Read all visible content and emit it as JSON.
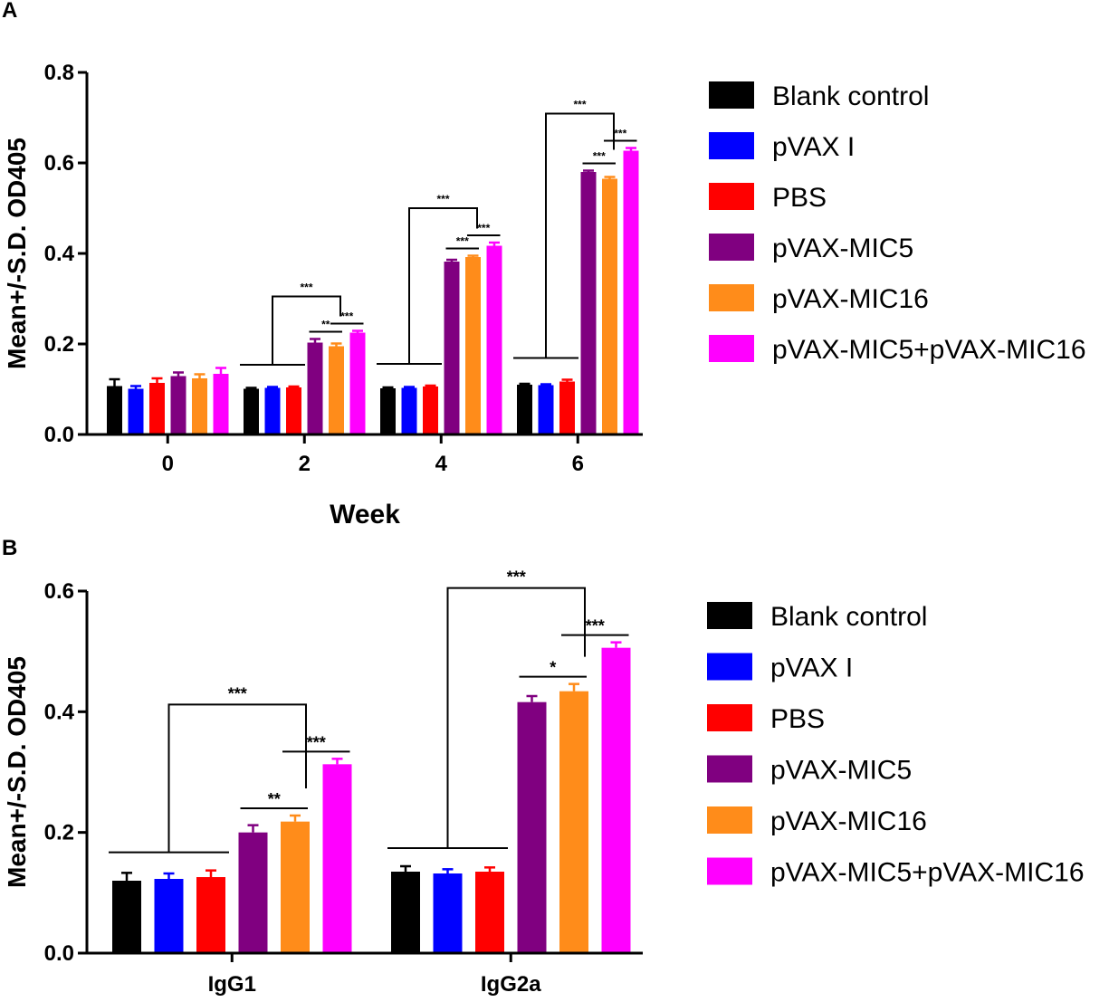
{
  "panels": [
    "A",
    "B"
  ],
  "chart_data": [
    {
      "type": "bar",
      "panel": "A",
      "xlabel": "Week",
      "ylabel": "Mean+/-S.D. OD405",
      "ylim": [
        0,
        0.8
      ],
      "yticks": [
        "0.0",
        "0.2",
        "0.4",
        "0.6",
        "0.8"
      ],
      "categories": [
        "0",
        "2",
        "4",
        "6"
      ],
      "series": [
        {
          "name": "Blank control",
          "color": "#000000",
          "values": [
            0.107,
            0.101,
            0.102,
            0.11
          ],
          "errors": [
            0.015,
            0.002,
            0.002,
            0.002
          ]
        },
        {
          "name": "pVAX I",
          "color": "#0000ff",
          "values": [
            0.101,
            0.103,
            0.103,
            0.109
          ],
          "errors": [
            0.006,
            0.002,
            0.002,
            0.002
          ]
        },
        {
          "name": "PBS",
          "color": "#ff0000",
          "values": [
            0.114,
            0.104,
            0.106,
            0.117
          ],
          "errors": [
            0.01,
            0.002,
            0.002,
            0.004
          ]
        },
        {
          "name": "pVAX-MIC5",
          "color": "#800080",
          "values": [
            0.129,
            0.203,
            0.382,
            0.58
          ],
          "errors": [
            0.008,
            0.008,
            0.004,
            0.003
          ]
        },
        {
          "name": "pVAX-MIC16",
          "color": "#ff8c1a",
          "values": [
            0.124,
            0.195,
            0.392,
            0.565
          ],
          "errors": [
            0.009,
            0.006,
            0.003,
            0.004
          ]
        },
        {
          "name": "pVAX-MIC5+pVAX-MIC16",
          "color": "#ff00ff",
          "values": [
            0.134,
            0.225,
            0.417,
            0.627
          ],
          "errors": [
            0.013,
            0.004,
            0.007,
            0.006
          ]
        }
      ],
      "significance": [
        {
          "category": "2",
          "type": "bracket",
          "label": "***"
        },
        {
          "category": "2",
          "type": "pair",
          "from": 3,
          "to": 4,
          "label": "**"
        },
        {
          "category": "2",
          "type": "pair",
          "from": 4,
          "to": 5,
          "label": "***"
        },
        {
          "category": "4",
          "type": "bracket",
          "label": "***"
        },
        {
          "category": "4",
          "type": "pair",
          "from": 3,
          "to": 4,
          "label": "***"
        },
        {
          "category": "4",
          "type": "pair",
          "from": 4,
          "to": 5,
          "label": "***"
        },
        {
          "category": "6",
          "type": "bracket",
          "label": "***"
        },
        {
          "category": "6",
          "type": "pair",
          "from": 3,
          "to": 4,
          "label": "***"
        },
        {
          "category": "6",
          "type": "pair",
          "from": 4,
          "to": 5,
          "label": "***"
        }
      ]
    },
    {
      "type": "bar",
      "panel": "B",
      "xlabel": "",
      "ylabel": "Mean+/-S.D. OD405",
      "ylim": [
        0,
        0.6
      ],
      "yticks": [
        "0.0",
        "0.2",
        "0.4",
        "0.6"
      ],
      "categories": [
        "IgG1",
        "IgG2a"
      ],
      "series": [
        {
          "name": "Blank control",
          "color": "#000000",
          "values": [
            0.12,
            0.135
          ],
          "errors": [
            0.013,
            0.009
          ]
        },
        {
          "name": "pVAX I",
          "color": "#0000ff",
          "values": [
            0.123,
            0.132
          ],
          "errors": [
            0.009,
            0.007
          ]
        },
        {
          "name": "PBS",
          "color": "#ff0000",
          "values": [
            0.126,
            0.135
          ],
          "errors": [
            0.011,
            0.007
          ]
        },
        {
          "name": "pVAX-MIC5",
          "color": "#800080",
          "values": [
            0.2,
            0.416
          ],
          "errors": [
            0.012,
            0.01
          ]
        },
        {
          "name": "pVAX-MIC16",
          "color": "#ff8c1a",
          "values": [
            0.218,
            0.434
          ],
          "errors": [
            0.01,
            0.012
          ]
        },
        {
          "name": "pVAX-MIC5+pVAX-MIC16",
          "color": "#ff00ff",
          "values": [
            0.313,
            0.506
          ],
          "errors": [
            0.009,
            0.009
          ]
        }
      ],
      "significance": [
        {
          "category": "IgG1",
          "type": "bracket",
          "label": "***"
        },
        {
          "category": "IgG1",
          "type": "pair",
          "from": 3,
          "to": 4,
          "label": "**"
        },
        {
          "category": "IgG1",
          "type": "pair",
          "from": 4,
          "to": 5,
          "label": "***"
        },
        {
          "category": "IgG2a",
          "type": "bracket",
          "label": "***"
        },
        {
          "category": "IgG2a",
          "type": "pair",
          "from": 3,
          "to": 4,
          "label": "*"
        },
        {
          "category": "IgG2a",
          "type": "pair",
          "from": 4,
          "to": 5,
          "label": "***"
        }
      ]
    }
  ]
}
